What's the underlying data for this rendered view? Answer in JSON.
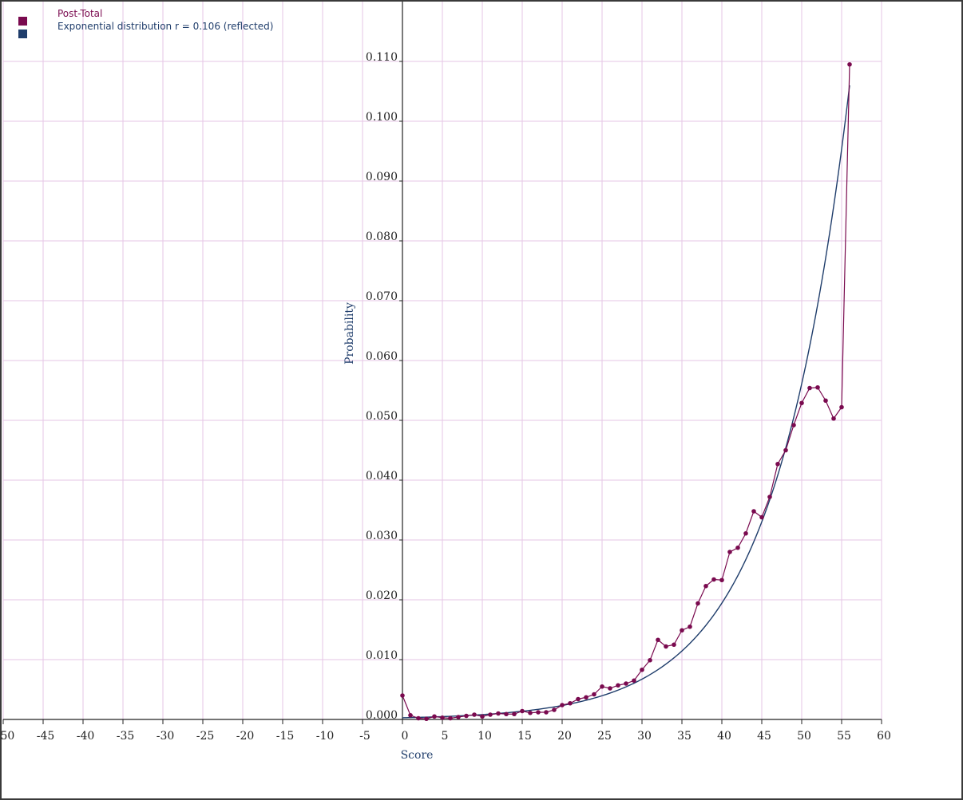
{
  "chart_data": {
    "type": "line",
    "xlabel": "Score",
    "ylabel": "Probability",
    "xlim": [
      -50,
      60
    ],
    "ylim": [
      0,
      0.12
    ],
    "grid": true,
    "legend_position": "top-left",
    "x_ticks": [
      "-50",
      "-45",
      "-40",
      "-35",
      "-30",
      "-25",
      "-20",
      "-15",
      "-10",
      "-5",
      "0",
      "5",
      "10",
      "15",
      "20",
      "25",
      "30",
      "35",
      "40",
      "45",
      "50",
      "55",
      "60"
    ],
    "y_ticks": [
      "0.000",
      "0.010",
      "0.020",
      "0.030",
      "0.040",
      "0.050",
      "0.060",
      "0.070",
      "0.080",
      "0.090",
      "0.100",
      "0.110"
    ],
    "colors": {
      "grid": "#e6c6e6",
      "axis": "#222222",
      "post_total": "#7a0a4f",
      "exponential": "#1f3d6b"
    },
    "series": [
      {
        "name": "Post-Total",
        "color": "#7a0a4f",
        "markers": true,
        "x": [
          0,
          1,
          2,
          3,
          4,
          5,
          6,
          7,
          8,
          9,
          10,
          11,
          12,
          13,
          14,
          15,
          16,
          17,
          18,
          19,
          20,
          21,
          22,
          23,
          24,
          25,
          26,
          27,
          28,
          29,
          30,
          31,
          32,
          33,
          34,
          35,
          36,
          37,
          38,
          39,
          40,
          41,
          42,
          43,
          44,
          45,
          46,
          47,
          48,
          49,
          50,
          51,
          52,
          53,
          54,
          55,
          56
        ],
        "y": [
          0.004,
          0.0007,
          0.0002,
          0.0001,
          0.0005,
          0.0003,
          0.0002,
          0.0004,
          0.0006,
          0.0008,
          0.0005,
          0.0008,
          0.001,
          0.0009,
          0.0009,
          0.0014,
          0.0011,
          0.0012,
          0.0012,
          0.0016,
          0.0024,
          0.0027,
          0.0034,
          0.0037,
          0.0042,
          0.0055,
          0.0052,
          0.0057,
          0.006,
          0.0065,
          0.0083,
          0.0099,
          0.0133,
          0.0122,
          0.0125,
          0.0149,
          0.0155,
          0.0194,
          0.0223,
          0.0234,
          0.0233,
          0.028,
          0.0287,
          0.0311,
          0.0348,
          0.0338,
          0.0372,
          0.0427,
          0.045,
          0.0492,
          0.0529,
          0.0554,
          0.0555,
          0.0533,
          0.0503,
          0.0522,
          0.1095
        ]
      },
      {
        "name": "Exponential distribution r = 0.106 (reflected)",
        "color": "#1f3d6b",
        "markers": false,
        "formula": "0.106 * exp(-0.106 * (56 - x))",
        "x_range": [
          0,
          56
        ]
      }
    ]
  }
}
